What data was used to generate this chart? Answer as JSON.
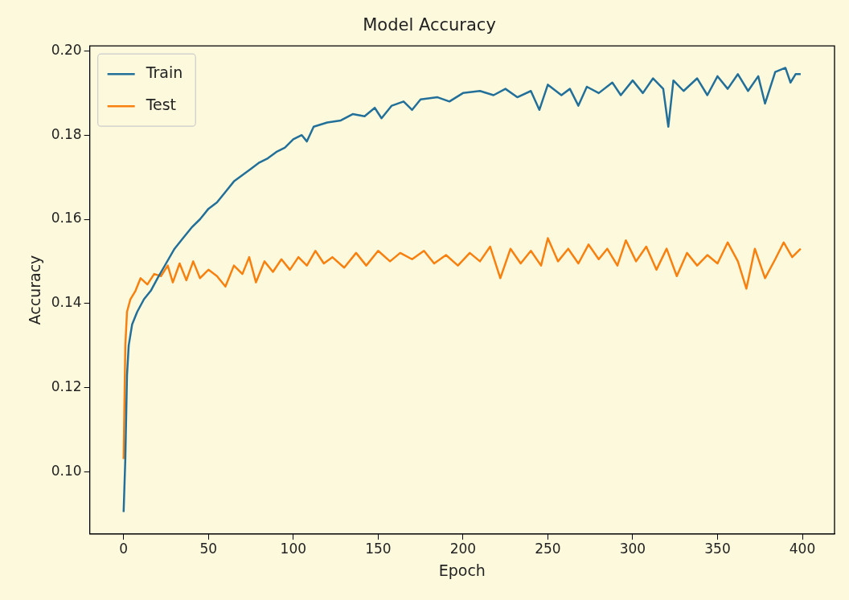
{
  "chart_data": {
    "type": "line",
    "title": "Model Accuracy",
    "xlabel": "Epoch",
    "ylabel": "Accuracy",
    "legend": "top left",
    "xlim": [
      -19.95,
      418.95
    ],
    "xticks": [
      0,
      50,
      100,
      150,
      200,
      250,
      300,
      350,
      400
    ],
    "ylim": [
      0.0852,
      0.2012
    ],
    "yticks": [
      {
        "value": 0.1,
        "label": "0.10"
      },
      {
        "value": 0.12,
        "label": "0.12"
      },
      {
        "value": 0.14,
        "label": "0.14"
      },
      {
        "value": 0.16,
        "label": "0.16"
      },
      {
        "value": 0.18,
        "label": "0.18"
      },
      {
        "value": 0.2,
        "label": "0.20"
      }
    ],
    "series": [
      {
        "name": "Train",
        "color": "#22709a",
        "x": [
          0,
          1,
          2,
          3,
          5,
          8,
          12,
          16,
          20,
          25,
          30,
          35,
          40,
          45,
          50,
          55,
          60,
          65,
          70,
          75,
          80,
          85,
          90,
          95,
          100,
          105,
          108,
          112,
          120,
          128,
          135,
          142,
          148,
          152,
          158,
          165,
          170,
          175,
          185,
          192,
          200,
          210,
          218,
          225,
          232,
          240,
          245,
          250,
          258,
          263,
          268,
          273,
          280,
          288,
          293,
          300,
          306,
          312,
          318,
          321,
          324,
          330,
          338,
          344,
          350,
          356,
          362,
          368,
          374,
          378,
          384,
          390,
          393,
          396,
          399
        ],
        "values": [
          0.0904,
          0.103,
          0.123,
          0.13,
          0.135,
          0.138,
          0.141,
          0.143,
          0.146,
          0.1495,
          0.153,
          0.1555,
          0.158,
          0.16,
          0.1625,
          0.164,
          0.1665,
          0.169,
          0.1705,
          0.172,
          0.1735,
          0.1745,
          0.176,
          0.177,
          0.179,
          0.18,
          0.1785,
          0.182,
          0.183,
          0.1835,
          0.185,
          0.1845,
          0.1865,
          0.184,
          0.187,
          0.188,
          0.186,
          0.1885,
          0.189,
          0.188,
          0.19,
          0.1905,
          0.1895,
          0.191,
          0.189,
          0.1905,
          0.186,
          0.192,
          0.1895,
          0.191,
          0.187,
          0.1915,
          0.19,
          0.1925,
          0.1895,
          0.193,
          0.19,
          0.1935,
          0.191,
          0.182,
          0.193,
          0.1905,
          0.1935,
          0.1895,
          0.194,
          0.191,
          0.1945,
          0.1905,
          0.194,
          0.1875,
          0.195,
          0.196,
          0.1925,
          0.1945,
          0.1945
        ]
      },
      {
        "name": "Test",
        "color": "#f8800f",
        "x": [
          0,
          1,
          2,
          4,
          7,
          10,
          14,
          18,
          22,
          26,
          29,
          33,
          37,
          41,
          45,
          50,
          55,
          60,
          65,
          70,
          74,
          78,
          83,
          88,
          93,
          98,
          103,
          108,
          113,
          118,
          123,
          130,
          137,
          143,
          150,
          157,
          163,
          170,
          177,
          183,
          190,
          197,
          204,
          210,
          216,
          222,
          228,
          234,
          240,
          246,
          250,
          256,
          262,
          268,
          274,
          280,
          285,
          291,
          296,
          302,
          308,
          314,
          320,
          326,
          332,
          338,
          344,
          350,
          356,
          362,
          367,
          372,
          378,
          384,
          389,
          394,
          399
        ],
        "values": [
          0.103,
          0.13,
          0.138,
          0.141,
          0.143,
          0.146,
          0.1445,
          0.147,
          0.1465,
          0.149,
          0.145,
          0.1495,
          0.1455,
          0.15,
          0.146,
          0.148,
          0.1465,
          0.144,
          0.149,
          0.147,
          0.151,
          0.145,
          0.15,
          0.1475,
          0.1505,
          0.148,
          0.151,
          0.149,
          0.1525,
          0.1495,
          0.151,
          0.1485,
          0.152,
          0.149,
          0.1525,
          0.15,
          0.152,
          0.1505,
          0.1525,
          0.1495,
          0.1515,
          0.149,
          0.152,
          0.15,
          0.1535,
          0.146,
          0.153,
          0.1495,
          0.1525,
          0.149,
          0.1555,
          0.15,
          0.153,
          0.1495,
          0.154,
          0.1505,
          0.153,
          0.149,
          0.155,
          0.15,
          0.1535,
          0.148,
          0.153,
          0.1465,
          0.152,
          0.149,
          0.1515,
          0.1495,
          0.1545,
          0.15,
          0.1435,
          0.153,
          0.146,
          0.1505,
          0.1545,
          0.151,
          0.153
        ]
      }
    ]
  }
}
